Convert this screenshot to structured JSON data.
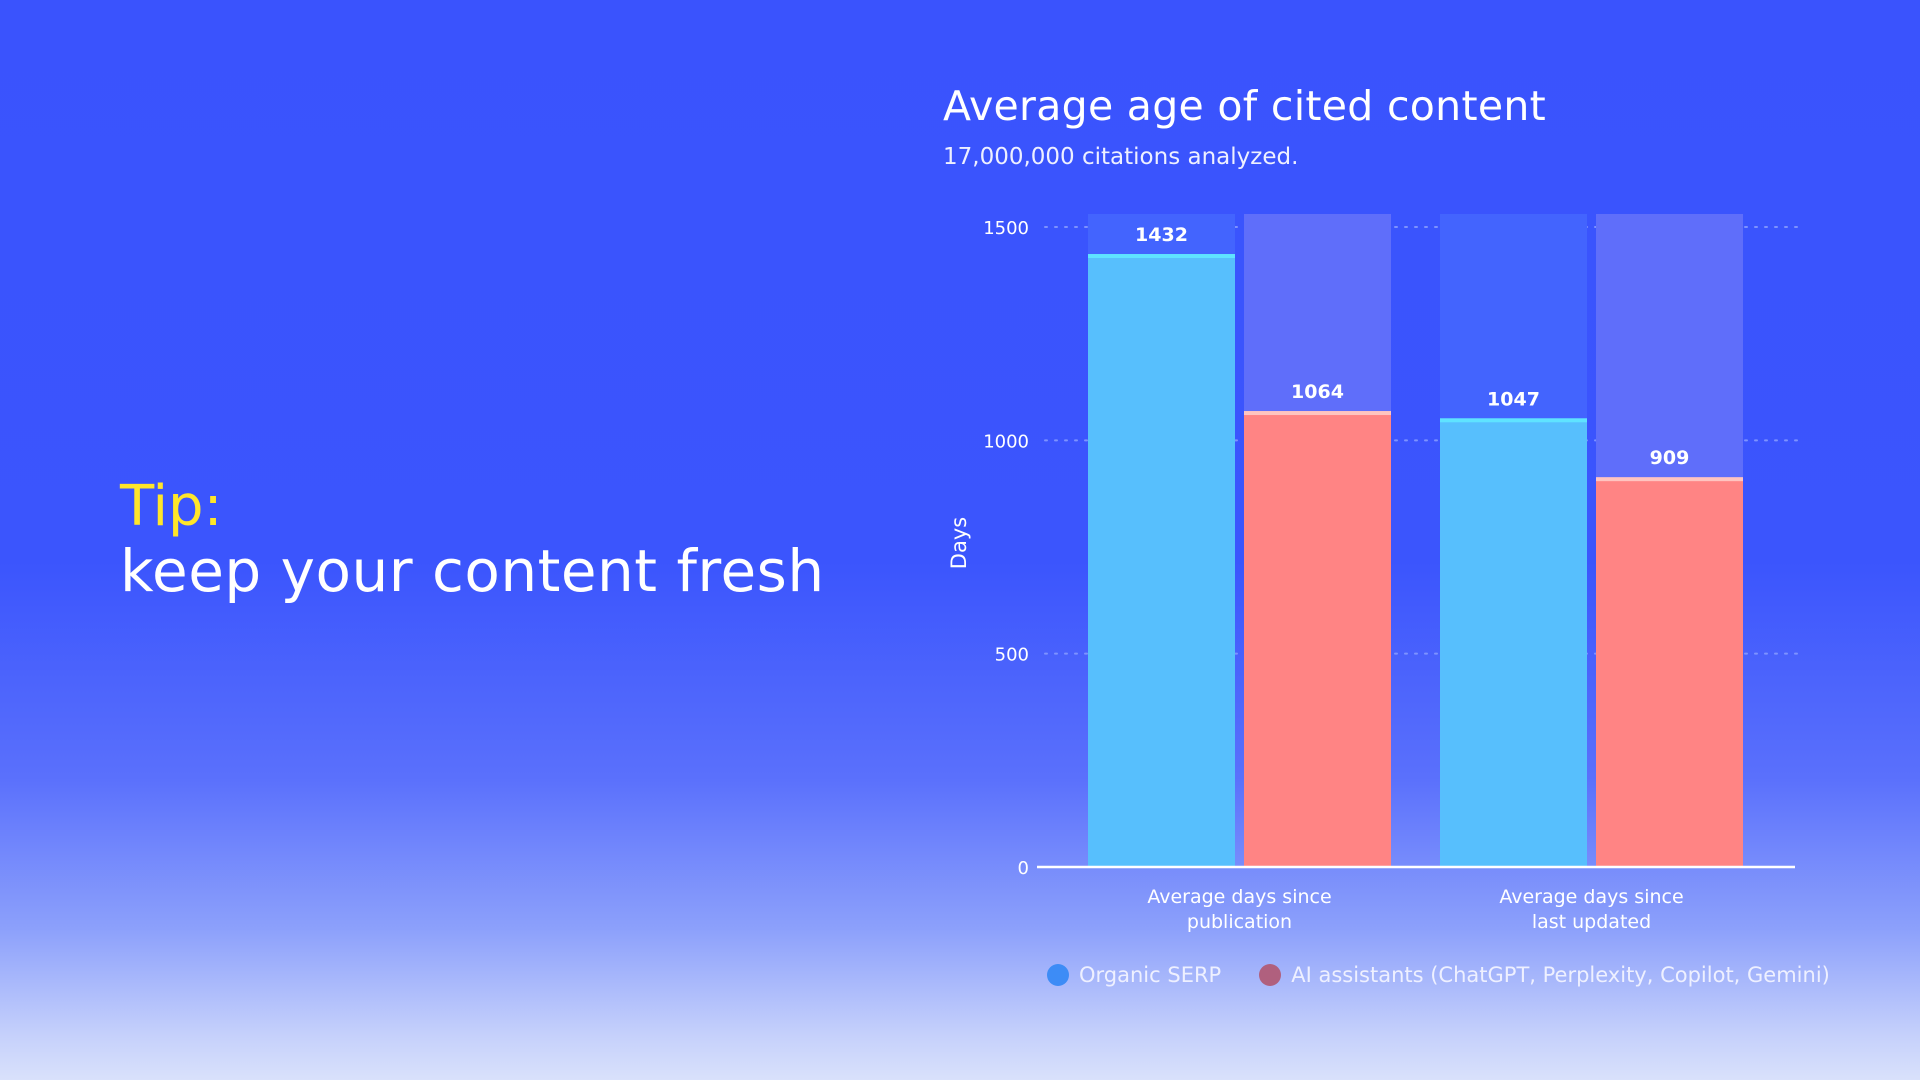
{
  "tip": {
    "label": "Tip:",
    "text": "keep your content fresh"
  },
  "chart_data": {
    "type": "bar",
    "title": "Average age of cited content",
    "subtitle": "17,000,000 citations analyzed.",
    "xlabel": "",
    "ylabel": "Days",
    "ylim": [
      0,
      1500
    ],
    "yticks": [
      0,
      500,
      1000,
      1500
    ],
    "grid": true,
    "legend_position": "bottom",
    "categories": [
      [
        "Average days since",
        "publication"
      ],
      [
        "Average days since",
        "last updated"
      ]
    ],
    "series": [
      {
        "name": "Organic SERP",
        "values": [
          1432,
          1047
        ],
        "color": "#57bffd",
        "legend_color": "#3d8cf6"
      },
      {
        "name": "AI assistants (ChatGPT, Perplexity, Copilot, Gemini)",
        "values": [
          1064,
          909
        ],
        "color": "#ff8484",
        "legend_color": "#b0607e"
      }
    ],
    "data_labels": [
      [
        "1432",
        "1047"
      ],
      [
        "1064",
        "909"
      ]
    ]
  },
  "colors": {
    "background": "#3a53fd",
    "tip_accent": "#ffe62a",
    "serp_cap": "#5fe3ff",
    "ai_cap": "#ffc4c0"
  }
}
